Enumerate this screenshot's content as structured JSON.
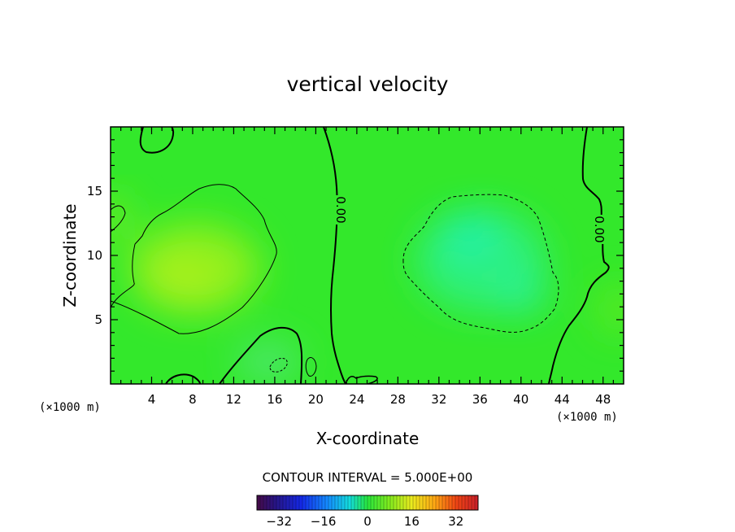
{
  "chart_data": {
    "type": "heatmap",
    "title": "vertical velocity",
    "xlabel": "X-coordinate",
    "ylabel": "Z-coordinate",
    "x_unit_left": "(×1000 m)",
    "x_unit_right": "(×1000 m)",
    "xlim": [
      0,
      50
    ],
    "ylim": [
      0,
      20
    ],
    "x_ticks": [
      4,
      8,
      12,
      16,
      20,
      24,
      28,
      32,
      36,
      40,
      44,
      48
    ],
    "y_ticks": [
      5,
      10,
      15
    ],
    "contour_interval_text": "CONTOUR INTERVAL = 5.000E+00",
    "contour_label": "0.00",
    "colorbar": {
      "range": [
        -40,
        40
      ],
      "ticks": [
        -32,
        -16,
        0,
        16,
        32
      ]
    },
    "field_centers": [
      {
        "x": 8,
        "z": 9,
        "value": 5
      },
      {
        "x": 35,
        "z": 11,
        "value": -5
      },
      {
        "x": 39,
        "z": 7,
        "value": -5
      },
      {
        "x": 16.5,
        "z": 1.5,
        "value": -3
      },
      {
        "x": 19.5,
        "z": 1.3,
        "value": 2
      },
      {
        "x": 1.0,
        "z": 13,
        "value": 2
      }
    ]
  }
}
